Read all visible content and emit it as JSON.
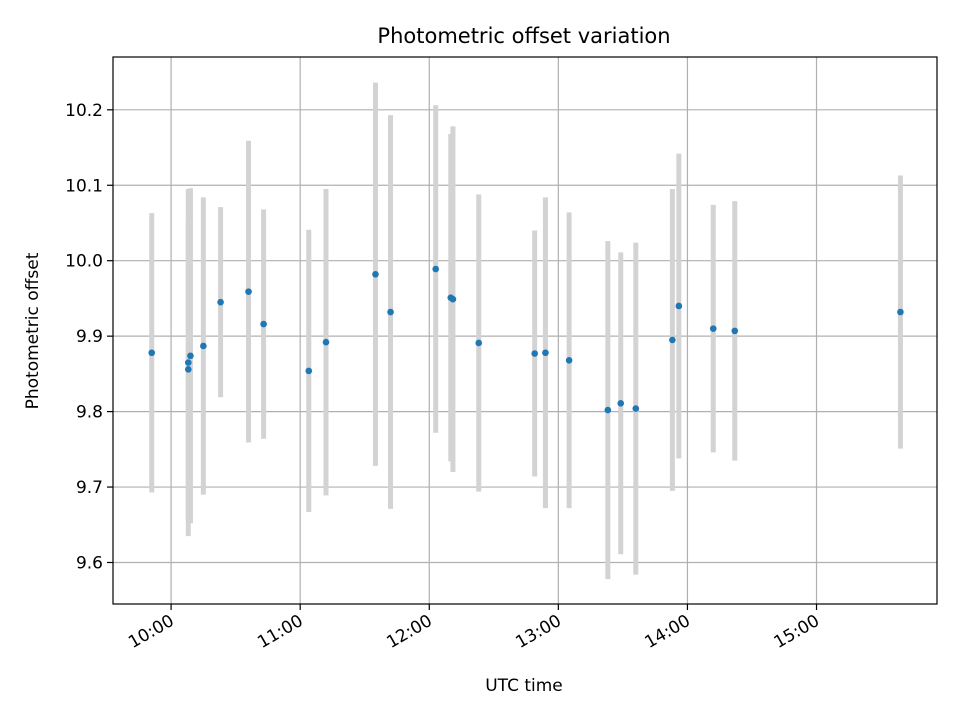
{
  "chart_data": {
    "type": "scatter",
    "title": "Photometric offset variation",
    "xlabel": "UTC time",
    "ylabel": "Photometric offset",
    "x_unit": "hours UTC",
    "xlim": [
      "09:33",
      "15:56"
    ],
    "ylim": [
      9.545,
      10.27
    ],
    "x_ticks": [
      "10:00",
      "11:00",
      "12:00",
      "13:00",
      "14:00",
      "15:00"
    ],
    "y_ticks": [
      "9.6",
      "9.7",
      "9.8",
      "9.9",
      "10.0",
      "10.1",
      "10.2"
    ],
    "grid": true,
    "colors": {
      "marker": "#1f77b4",
      "errorbar": "#d3d3d3",
      "grid": "#b0b0b0"
    },
    "points": [
      {
        "time": "09:51",
        "y": 9.878,
        "yerr": 0.185
      },
      {
        "time": "10:08",
        "y": 9.856,
        "yerr": 0.2
      },
      {
        "time": "10:08",
        "y": 9.865,
        "yerr": 0.23
      },
      {
        "time": "10:09",
        "y": 9.874,
        "yerr": 0.222
      },
      {
        "time": "10:15",
        "y": 9.887,
        "yerr": 0.197
      },
      {
        "time": "10:23",
        "y": 9.945,
        "yerr": 0.126
      },
      {
        "time": "10:36",
        "y": 9.959,
        "yerr": 0.2
      },
      {
        "time": "10:43",
        "y": 9.916,
        "yerr": 0.152
      },
      {
        "time": "11:04",
        "y": 9.854,
        "yerr": 0.187
      },
      {
        "time": "11:12",
        "y": 9.892,
        "yerr": 0.203
      },
      {
        "time": "11:35",
        "y": 9.982,
        "yerr": 0.254
      },
      {
        "time": "11:42",
        "y": 9.932,
        "yerr": 0.261
      },
      {
        "time": "12:03",
        "y": 9.989,
        "yerr": 0.217
      },
      {
        "time": "12:10",
        "y": 9.951,
        "yerr": 0.217
      },
      {
        "time": "12:11",
        "y": 9.949,
        "yerr": 0.229
      },
      {
        "time": "12:23",
        "y": 9.891,
        "yerr": 0.197
      },
      {
        "time": "12:49",
        "y": 9.877,
        "yerr": 0.163
      },
      {
        "time": "12:54",
        "y": 9.878,
        "yerr": 0.206
      },
      {
        "time": "13:05",
        "y": 9.868,
        "yerr": 0.196
      },
      {
        "time": "13:23",
        "y": 9.802,
        "yerr": 0.224
      },
      {
        "time": "13:29",
        "y": 9.811,
        "yerr": 0.2
      },
      {
        "time": "13:36",
        "y": 9.804,
        "yerr": 0.22
      },
      {
        "time": "13:53",
        "y": 9.895,
        "yerr": 0.2
      },
      {
        "time": "13:56",
        "y": 9.94,
        "yerr": 0.202
      },
      {
        "time": "14:12",
        "y": 9.91,
        "yerr": 0.164
      },
      {
        "time": "14:22",
        "y": 9.907,
        "yerr": 0.172
      },
      {
        "time": "15:39",
        "y": 9.932,
        "yerr": 0.181
      }
    ]
  }
}
